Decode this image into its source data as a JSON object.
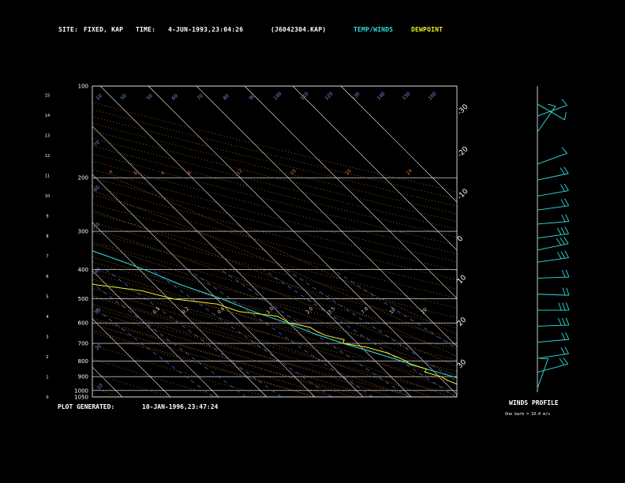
{
  "header": {
    "site_label": "SITE:",
    "site_value": "FIXED, KAP",
    "time_label": "TIME:",
    "time_value": "4-JUN-1993,23:04:26",
    "file_id": "(J6042304.KAP)",
    "legend_temp": "TEMP/WINDS",
    "legend_dewpoint": "DEWPOINT"
  },
  "footer": {
    "plot_generated_label": "PLOT GENERATED:",
    "plot_generated_value": "10-JAN-1996,23:47:24",
    "winds_profile_label": "WINDS PROFILE",
    "barb_note": "One barb = 10.0 m/s"
  },
  "colors": {
    "temperature": "#33dddd",
    "dewpoint": "#eeee22",
    "isotherm": "#ffffff",
    "isobar": "#ffffff",
    "dry_adiabat": "#dd8833",
    "moist_adiabat": "#dd8833",
    "mixing_ratio": "#5577dd",
    "wind_barb": "#33dddd"
  },
  "chart_data": {
    "type": "line",
    "skewt": true,
    "y_scale": "log",
    "ylim_hpa": [
      1050,
      100
    ],
    "pressure_ticks": [
      100,
      200,
      300,
      400,
      500,
      600,
      700,
      800,
      900,
      1000,
      1050
    ],
    "height_ticks_km": [
      0,
      1,
      2,
      3,
      4,
      5,
      6,
      7,
      8,
      9,
      10,
      11,
      12,
      13,
      14,
      15
    ],
    "top_temp_labels": [
      -110,
      -100,
      -90,
      -80,
      -70,
      -60,
      -50,
      -40
    ],
    "right_temp_labels": [
      -30,
      -20,
      -10,
      0,
      10,
      20,
      30
    ],
    "dry_adiabat_labels": [
      90,
      80,
      70,
      60,
      50,
      40,
      30,
      20,
      10,
      0,
      -10,
      -20,
      -30
    ],
    "theta_labels": [
      100,
      110,
      120,
      130,
      140,
      150,
      160
    ],
    "moist_labels": [
      30,
      28,
      26,
      24,
      22,
      20,
      18
    ],
    "mixing_ratio_labels": [
      "0.1",
      "0.2",
      "0.4",
      "1.0",
      "2.0",
      "3.5",
      "7.0",
      "10",
      "20"
    ],
    "series": [
      {
        "key": "temperature",
        "p": [
          1000,
          950,
          925,
          900,
          850,
          800,
          750,
          700,
          650,
          600,
          550,
          500,
          450,
          400,
          350,
          300,
          250,
          200,
          175,
          150,
          130,
          115,
          100
        ],
        "t": [
          19,
          16,
          14.5,
          13,
          9,
          5.5,
          1.5,
          -3,
          -7,
          -10.5,
          -15,
          -19,
          -24.5,
          -29,
          -35.5,
          -43,
          -51,
          -59,
          -63,
          -67,
          -69,
          -68.5,
          -67
        ]
      },
      {
        "key": "dewpoint",
        "p": [
          1000,
          970,
          950,
          925,
          900,
          870,
          850,
          820,
          800,
          770,
          750,
          720,
          700,
          680,
          660,
          640,
          620,
          600,
          570,
          550,
          520,
          500,
          470,
          450,
          420,
          400,
          380,
          360,
          340,
          320,
          300,
          280,
          260,
          240,
          220,
          200,
          180,
          160,
          140,
          120,
          100
        ],
        "t": [
          14,
          12.5,
          12,
          11,
          10.5,
          8,
          9,
          6.5,
          6.5,
          5,
          4,
          1,
          -3,
          -2,
          -5,
          -6,
          -6.5,
          -10,
          -11,
          -18,
          -21,
          -29,
          -34,
          -42,
          -50,
          -52,
          -49,
          -52,
          -58,
          -62,
          -65,
          -68,
          -70,
          -74,
          -78,
          -80,
          -84,
          -87,
          -89,
          -91,
          -88
        ]
      }
    ],
    "winds": [
      {
        "z": 0.2,
        "dir": 200,
        "spd": 7
      },
      {
        "z": 1.0,
        "dir": 255,
        "spd": 18
      },
      {
        "z": 1.7,
        "dir": 262,
        "spd": 20
      },
      {
        "z": 2.5,
        "dir": 265,
        "spd": 24
      },
      {
        "z": 3.3,
        "dir": 268,
        "spd": 26
      },
      {
        "z": 4.1,
        "dir": 270,
        "spd": 25
      },
      {
        "z": 4.9,
        "dir": 272,
        "spd": 22
      },
      {
        "z": 5.7,
        "dir": 268,
        "spd": 20
      },
      {
        "z": 6.5,
        "dir": 262,
        "spd": 30
      },
      {
        "z": 7.1,
        "dir": 258,
        "spd": 34
      },
      {
        "z": 7.7,
        "dir": 262,
        "spd": 28
      },
      {
        "z": 8.4,
        "dir": 265,
        "spd": 24
      },
      {
        "z": 9.1,
        "dir": 262,
        "spd": 22
      },
      {
        "z": 9.8,
        "dir": 260,
        "spd": 20
      },
      {
        "z": 10.6,
        "dir": 258,
        "spd": 18
      },
      {
        "z": 11.4,
        "dir": 250,
        "spd": 12
      },
      {
        "z": 13.0,
        "dir": 215,
        "spd": 8
      },
      {
        "z": 13.8,
        "dir": 250,
        "spd": 6
      },
      {
        "z": 14.4,
        "dir": 300,
        "spd": 4
      }
    ]
  }
}
